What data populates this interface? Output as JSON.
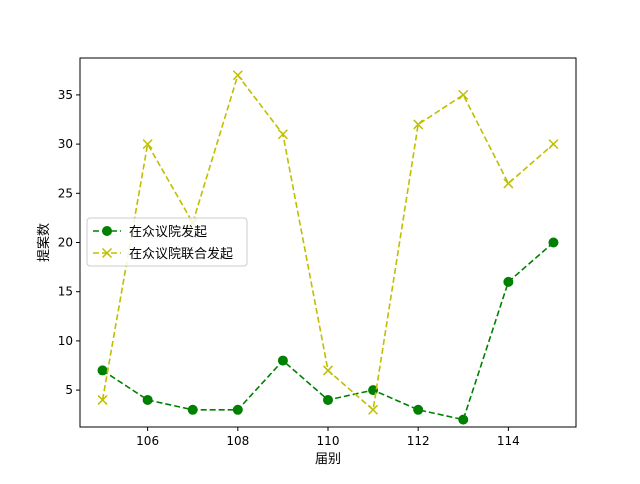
{
  "chart_data": {
    "type": "line",
    "title": "",
    "xlabel": "届别",
    "ylabel": "提案数",
    "xlim": [
      104.5,
      115.5
    ],
    "ylim": [
      1.25,
      38.75
    ],
    "x_ticks": [
      106,
      108,
      110,
      112,
      114
    ],
    "y_ticks": [
      5,
      10,
      15,
      20,
      25,
      30,
      35
    ],
    "grid": false,
    "legend_position": "center-left",
    "x": [
      105,
      106,
      107,
      108,
      109,
      110,
      111,
      112,
      113,
      114,
      115
    ],
    "series": [
      {
        "name": "在众议院发起",
        "values": [
          7,
          4,
          3,
          3,
          8,
          4,
          5,
          3,
          2,
          16,
          20
        ],
        "color": "#008000",
        "marker": "circle",
        "line_style": "dashed"
      },
      {
        "name": "在众议院联合发起",
        "values": [
          4,
          30,
          22,
          37,
          31,
          7,
          3,
          32,
          35,
          26,
          30
        ],
        "color": "#bfbf00",
        "marker": "x",
        "line_style": "dashed"
      }
    ]
  }
}
